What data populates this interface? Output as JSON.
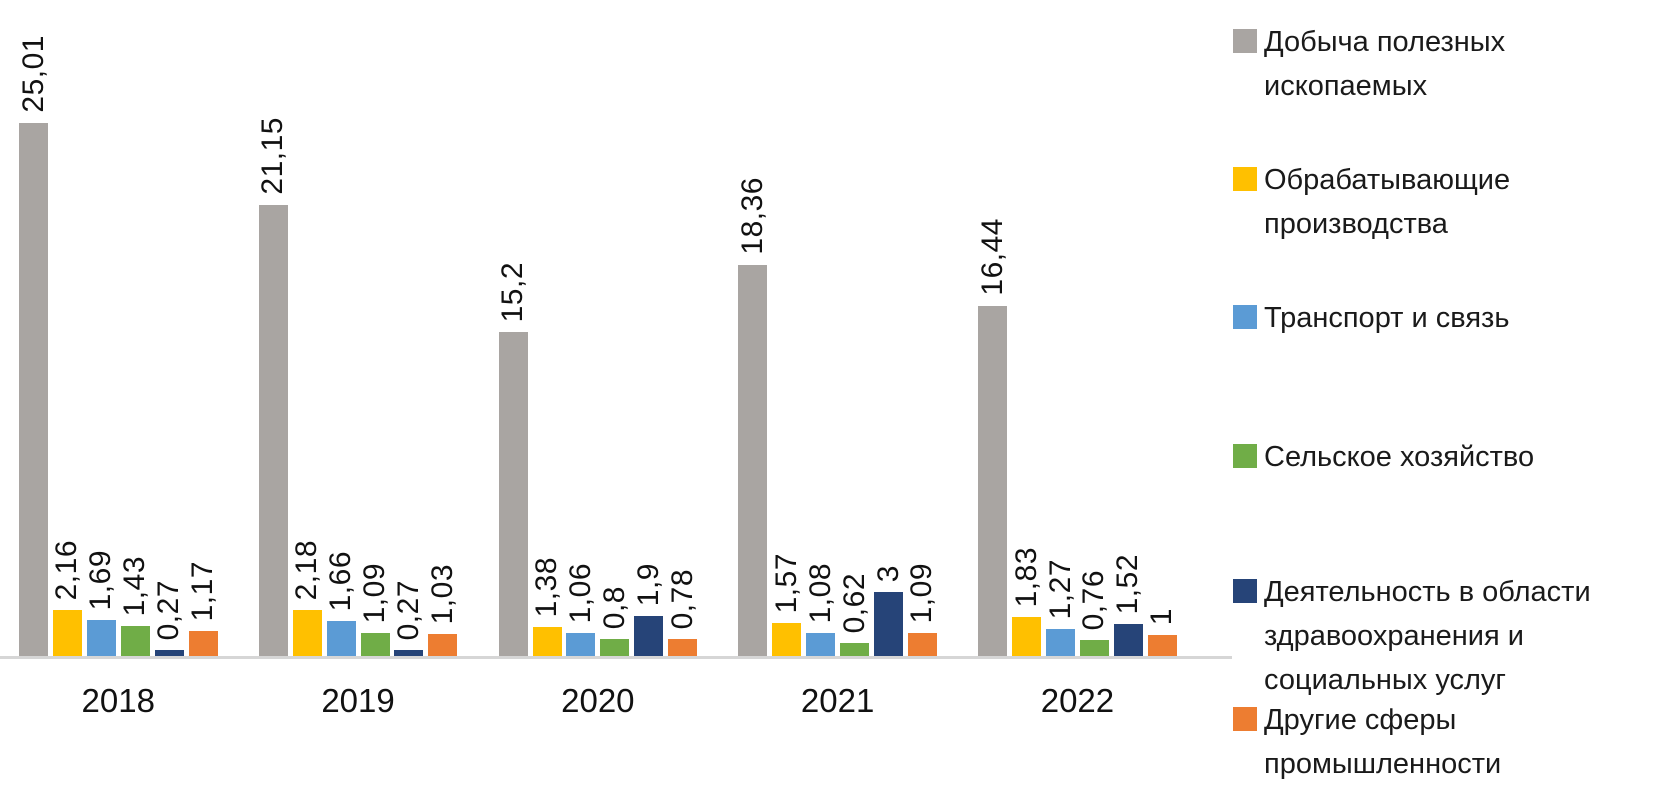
{
  "chart_data": {
    "type": "bar",
    "title": "",
    "xlabel": "",
    "ylabel": "",
    "categories": [
      "2018",
      "2019",
      "2020",
      "2021",
      "2022"
    ],
    "series": [
      {
        "name": "Добыча полезных ископаемых",
        "legend_label": "Добыча полезных\nископаемых",
        "color": "#a9a5a2",
        "textured": true,
        "values": [
          25.01,
          21.15,
          15.2,
          18.36,
          16.44
        ]
      },
      {
        "name": "Обрабатывающие производства",
        "legend_label": "Обрабатывающие\nпроизводства",
        "color": "#ffc000",
        "textured": false,
        "values": [
          2.16,
          2.18,
          1.38,
          1.57,
          1.83
        ]
      },
      {
        "name": "Транспорт и связь",
        "legend_label": "Транспорт и связь",
        "color": "#5b9bd5",
        "textured": false,
        "values": [
          1.69,
          1.66,
          1.06,
          1.08,
          1.27
        ]
      },
      {
        "name": "Сельское хозяйство",
        "legend_label": "Сельское хозяйство",
        "color": "#70ad47",
        "textured": false,
        "values": [
          1.43,
          1.09,
          0.8,
          0.62,
          0.76
        ]
      },
      {
        "name": "Деятельность в области здравоохранения и социальных услуг",
        "legend_label": "Деятельность в области\nздравоохранения и\nсоциальных услуг",
        "color": "#264478",
        "textured": false,
        "values": [
          0.27,
          0.27,
          1.9,
          3,
          1.52
        ]
      },
      {
        "name": "Другие сферы промышленности",
        "legend_label": "Другие сферы\nпромышленности",
        "color": "#ed7d31",
        "textured": false,
        "values": [
          1.17,
          1.03,
          0.78,
          1.09,
          1
        ]
      }
    ],
    "data_label_decimal_separator": ",",
    "data_label_rotation_deg": -90,
    "ylim": [
      0,
      25.01
    ],
    "grid": false,
    "y_axis_visible": false,
    "legend_position": "right"
  },
  "colors": {
    "axis_line": "#d6d6d6",
    "label_text": "#111111",
    "legend_text": "#1a1a1a",
    "background": "#ffffff"
  }
}
